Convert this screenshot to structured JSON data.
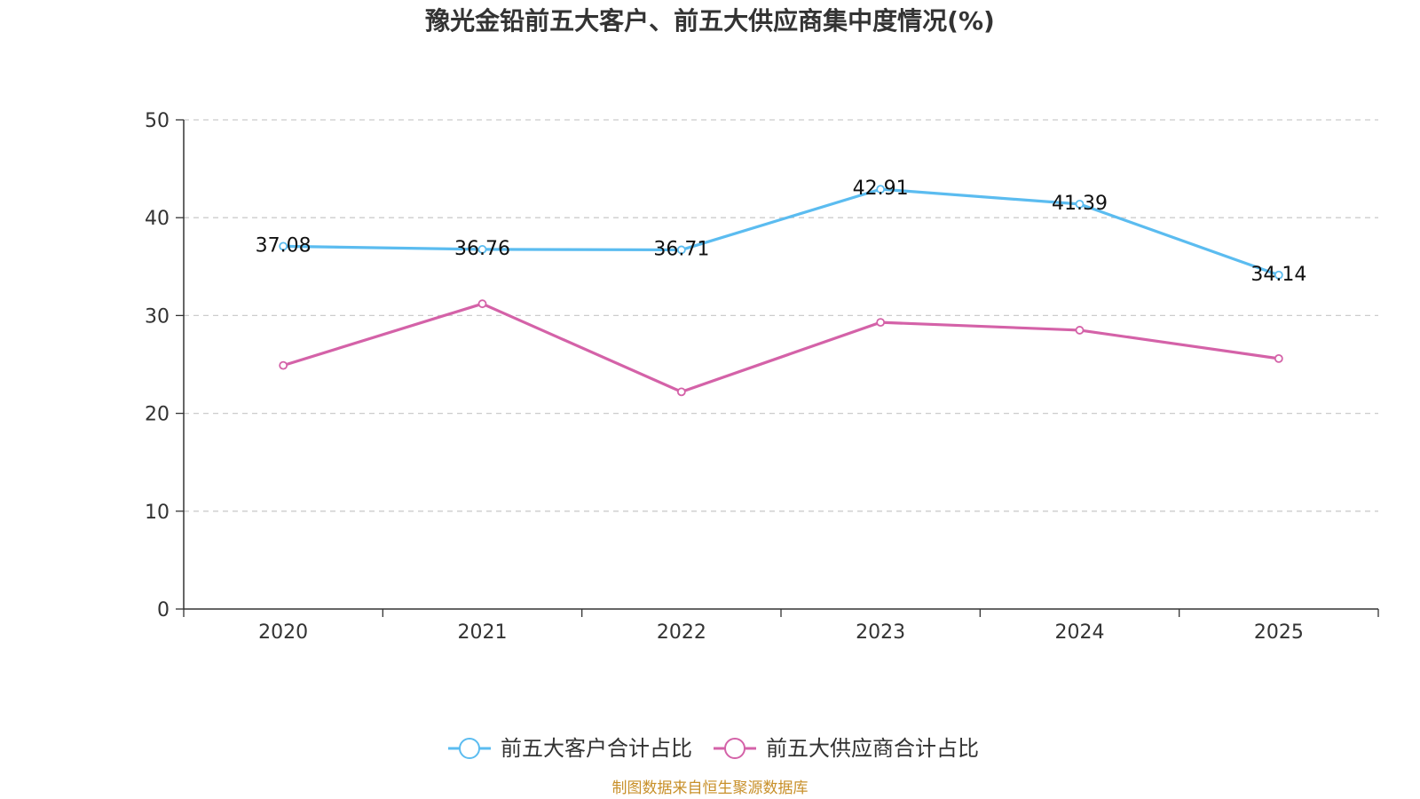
{
  "chart_data": {
    "type": "line",
    "title": "豫光金铅前五大客户、前五大供应商集中度情况(%)",
    "categories": [
      "2020",
      "2021",
      "2022",
      "2023",
      "2024",
      "2025"
    ],
    "ylim": [
      0,
      50
    ],
    "yticks": [
      "0",
      "10",
      "20",
      "30",
      "40",
      "50"
    ],
    "xlabel": "",
    "ylabel": "",
    "grid": true,
    "legend_position": "bottom-center",
    "series": [
      {
        "name": "前五大客户合计占比",
        "color": "#5bbcf0",
        "values": [
          37.08,
          36.76,
          36.71,
          42.91,
          41.39,
          34.14
        ],
        "labels": [
          "37.08",
          "36.76",
          "36.71",
          "42.91",
          "41.39",
          "34.14"
        ],
        "show_labels": true
      },
      {
        "name": "前五大供应商合计占比",
        "color": "#d462a8",
        "values": [
          24.9,
          31.2,
          22.2,
          29.3,
          28.5,
          25.6
        ],
        "show_labels": false
      }
    ]
  },
  "source": "制图数据来自恒生聚源数据库"
}
